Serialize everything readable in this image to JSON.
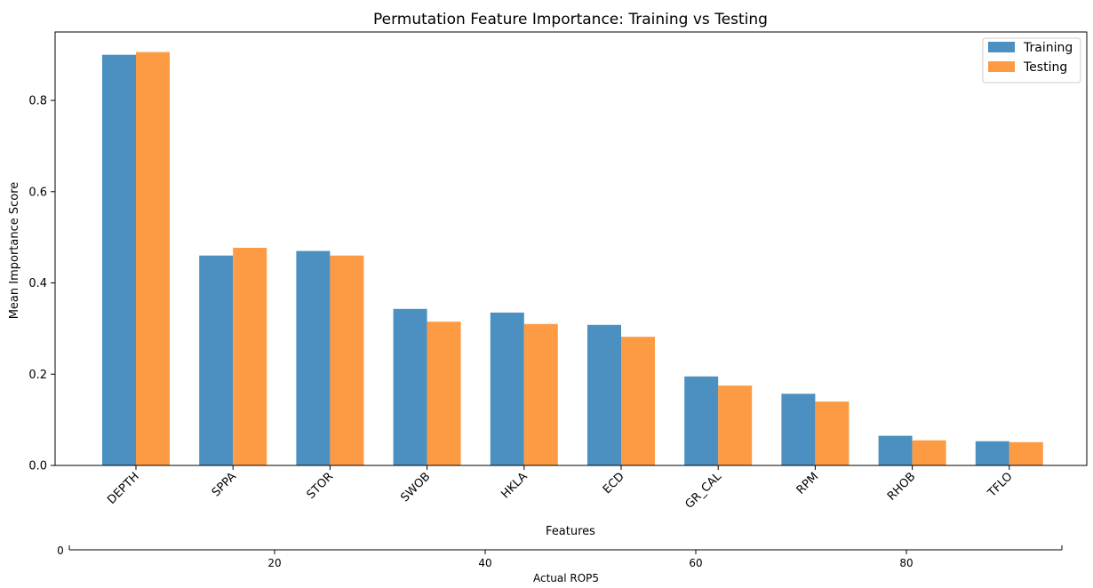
{
  "chart_data": {
    "type": "bar",
    "title": "Permutation Feature Importance: Training vs Testing",
    "xlabel": "Features",
    "ylabel": "Mean Importance Score",
    "ylim": [
      0,
      0.95
    ],
    "yticks": [
      "0.0",
      "0.2",
      "0.4",
      "0.6",
      "0.8"
    ],
    "categories": [
      "DEPTH",
      "SPPA",
      "STOR",
      "SWOB",
      "HKLA",
      "ECD",
      "GR_CAL",
      "RPM",
      "RHOB",
      "TFLO"
    ],
    "series": [
      {
        "name": "Training",
        "color": "#4c8fc1",
        "values": [
          0.9,
          0.46,
          0.47,
          0.343,
          0.335,
          0.308,
          0.195,
          0.157,
          0.065,
          0.053
        ]
      },
      {
        "name": "Testing",
        "color": "#fd9b45",
        "values": [
          0.906,
          0.477,
          0.46,
          0.315,
          0.31,
          0.282,
          0.175,
          0.14,
          0.055,
          0.051
        ]
      }
    ],
    "legend": "top-right",
    "grid": false
  },
  "secondary_axis": {
    "xlabel": "Actual ROP5",
    "ticks": [
      "20",
      "40",
      "60",
      "80"
    ],
    "left_label": "0"
  }
}
